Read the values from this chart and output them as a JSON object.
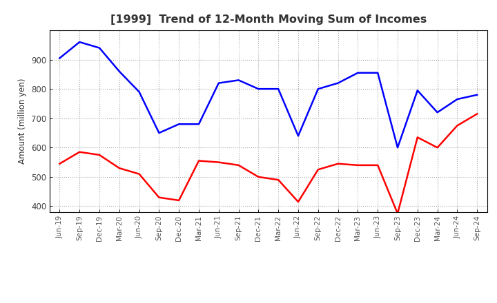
{
  "title": "[1999]  Trend of 12-Month Moving Sum of Incomes",
  "ylabel": "Amount (million yen)",
  "background_color": "#ffffff",
  "grid_color": "#aaaaaa",
  "x_labels": [
    "Jun-19",
    "Sep-19",
    "Dec-19",
    "Mar-20",
    "Jun-20",
    "Sep-20",
    "Dec-20",
    "Mar-21",
    "Jun-21",
    "Sep-21",
    "Dec-21",
    "Mar-22",
    "Jun-22",
    "Sep-22",
    "Dec-22",
    "Mar-23",
    "Jun-23",
    "Sep-23",
    "Dec-23",
    "Mar-24",
    "Jun-24",
    "Sep-24"
  ],
  "ordinary_income": [
    905,
    960,
    940,
    860,
    790,
    650,
    680,
    680,
    820,
    830,
    800,
    800,
    640,
    800,
    820,
    855,
    855,
    600,
    795,
    720,
    765,
    780
  ],
  "net_income": [
    545,
    585,
    575,
    530,
    510,
    430,
    420,
    555,
    550,
    540,
    500,
    490,
    415,
    525,
    545,
    540,
    540,
    375,
    635,
    600,
    675,
    715
  ],
  "ordinary_color": "#0000ff",
  "net_color": "#ff0000",
  "ylim": [
    380,
    1000
  ],
  "yticks": [
    400,
    500,
    600,
    700,
    800,
    900
  ]
}
